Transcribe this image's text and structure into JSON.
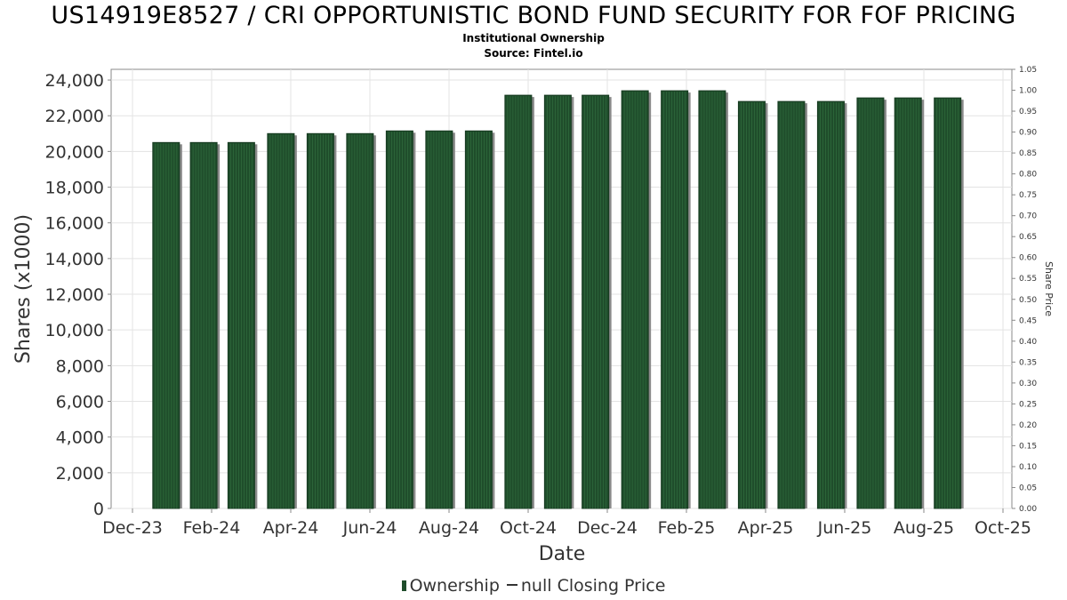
{
  "chart_data": {
    "type": "bar",
    "title": "US14919E8527 / CRI OPPORTUNISTIC BOND FUND SECURITY FOR FOF PRICING",
    "subtitles": [
      "Institutional Ownership",
      "Source: Fintel.io"
    ],
    "xlabel": "Date",
    "ylabel": "Shares (x1000)",
    "y2label": "Share Price",
    "ylim": [
      0,
      24600
    ],
    "y2lim": [
      0,
      1.05
    ],
    "yticks": [
      "0",
      "2,000",
      "4,000",
      "6,000",
      "8,000",
      "10,000",
      "12,000",
      "14,000",
      "16,000",
      "18,000",
      "20,000",
      "22,000",
      "24,000"
    ],
    "ytick_values": [
      0,
      2000,
      4000,
      6000,
      8000,
      10000,
      12000,
      14000,
      16000,
      18000,
      20000,
      22000,
      24000
    ],
    "y2ticks": [
      "0.00",
      "0.05",
      "0.10",
      "0.15",
      "0.20",
      "0.25",
      "0.30",
      "0.35",
      "0.40",
      "0.45",
      "0.50",
      "0.55",
      "0.60",
      "0.65",
      "0.70",
      "0.75",
      "0.80",
      "0.85",
      "0.90",
      "0.95",
      "1.00",
      "1.05"
    ],
    "xticks": [
      "Dec-23",
      "Feb-24",
      "Apr-24",
      "Jun-24",
      "Aug-24",
      "Oct-24",
      "Dec-24",
      "Feb-25",
      "Apr-25",
      "Jun-25",
      "Aug-25",
      "Oct-25"
    ],
    "grid": true,
    "legend_position": "bottom",
    "series": [
      {
        "name": "Ownership",
        "color": "#1f4d2b",
        "bar_positions": [
          0.85,
          1.8,
          2.75,
          3.75,
          4.75,
          5.75,
          6.75,
          7.75,
          8.75,
          9.75,
          10.75,
          11.7,
          12.7,
          13.7,
          14.65,
          15.65,
          16.65,
          17.65,
          18.65,
          19.6,
          20.6
        ],
        "values": [
          20500,
          20500,
          20500,
          21000,
          21000,
          21000,
          21150,
          21150,
          21150,
          23150,
          23150,
          23150,
          23400,
          23400,
          23400,
          22800,
          22800,
          22800,
          23000,
          23000,
          23000
        ]
      },
      {
        "name": "null Closing Price",
        "color": "#333333",
        "values": []
      }
    ]
  }
}
